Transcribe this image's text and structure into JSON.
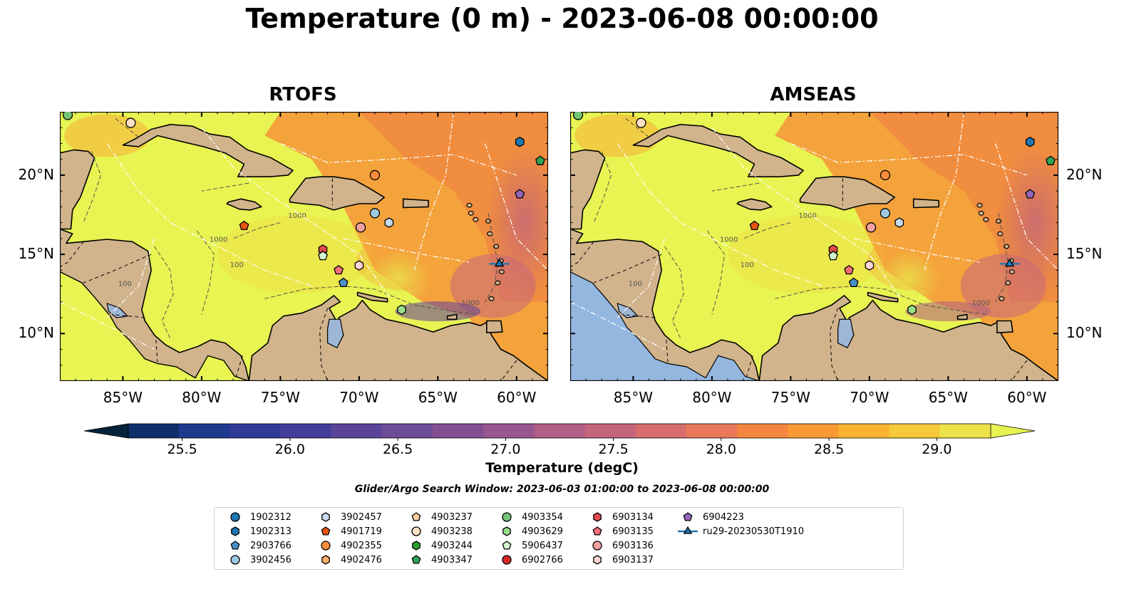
{
  "title": "Temperature (0 m) - 2023-06-08 00:00:00",
  "panels": [
    {
      "id": "rtofs",
      "title": "RTOFS"
    },
    {
      "id": "amseas",
      "title": "AMSEAS"
    }
  ],
  "map_extent": {
    "lon": [
      -89,
      -58
    ],
    "lat": [
      7,
      24
    ]
  },
  "lon_ticks": [
    "85°W",
    "80°W",
    "75°W",
    "70°W",
    "65°W",
    "60°W"
  ],
  "lon_tick_values": [
    -85,
    -80,
    -75,
    -70,
    -65,
    -60
  ],
  "lat_ticks": [
    "20°N",
    "15°N",
    "10°N"
  ],
  "lat_tick_values": [
    20,
    15,
    10
  ],
  "contour_labels": [
    "1000",
    "100"
  ],
  "colorbar": {
    "label": "Temperature (degC)",
    "min": 25.25,
    "max": 29.25,
    "ticks": [
      "25.5",
      "26.0",
      "26.5",
      "27.0",
      "27.5",
      "28.0",
      "28.5",
      "29.0"
    ],
    "tick_values": [
      25.5,
      26.0,
      26.5,
      27.0,
      27.5,
      28.0,
      28.5,
      29.0
    ],
    "extend": "both",
    "colors": [
      "#03233a",
      "#0f2f6b",
      "#1e3a8e",
      "#2e3b96",
      "#443c9b",
      "#5a4499",
      "#6e4b96",
      "#834f93",
      "#9a568f",
      "#b05e86",
      "#c4657b",
      "#d76d6c",
      "#e9785a",
      "#f4873f",
      "#f99a35",
      "#fbb233",
      "#f5c93a",
      "#eee24a",
      "#e6f250"
    ]
  },
  "search_window": "Glider/Argo Search Window: 2023-06-03 01:00:00 to 2023-06-08 00:00:00",
  "colors": {
    "land": "#d1b48c",
    "lakes": "#9eb7d6",
    "pacific": "#94b7e0",
    "warm": "#f3a53c",
    "yellow": "#e8f452"
  },
  "legend": [
    {
      "label": "1902312",
      "marker": "circle",
      "color": "#1f77b4"
    },
    {
      "label": "1902313",
      "marker": "hexagon",
      "color": "#1f77b4"
    },
    {
      "label": "2903766",
      "marker": "pentagon",
      "color": "#4a90c8"
    },
    {
      "label": "3902456",
      "marker": "circle",
      "color": "#9ecae1"
    },
    {
      "label": "3902457",
      "marker": "hexagon",
      "color": "#c6dbef"
    },
    {
      "label": "4901719",
      "marker": "pentagon",
      "color": "#e6550d"
    },
    {
      "label": "4902355",
      "marker": "circle",
      "color": "#fd8d3c"
    },
    {
      "label": "4902476",
      "marker": "hexagon",
      "color": "#fdae6b"
    },
    {
      "label": "4903237",
      "marker": "pentagon",
      "color": "#fdd0a2"
    },
    {
      "label": "4903238",
      "marker": "circle",
      "color": "#fde0c5"
    },
    {
      "label": "4903244",
      "marker": "hexagon",
      "color": "#2ca02c"
    },
    {
      "label": "4903347",
      "marker": "pentagon",
      "color": "#31a354"
    },
    {
      "label": "4903354",
      "marker": "circle",
      "color": "#74c476"
    },
    {
      "label": "4903629",
      "marker": "hexagon",
      "color": "#98df8a"
    },
    {
      "label": "5906437",
      "marker": "pentagon",
      "color": "#d4f7cf"
    },
    {
      "label": "6902766",
      "marker": "circle",
      "color": "#d62728"
    },
    {
      "label": "6903134",
      "marker": "hexagon",
      "color": "#e34a4a"
    },
    {
      "label": "6903135",
      "marker": "pentagon",
      "color": "#f46d78"
    },
    {
      "label": "6903136",
      "marker": "circle",
      "color": "#f4a0a0"
    },
    {
      "label": "6903137",
      "marker": "hexagon",
      "color": "#fcd4d4"
    },
    {
      "label": "6904223",
      "marker": "pentagon",
      "color": "#9467bd"
    },
    {
      "label": "ru29-20230530T1910",
      "marker": "triangle-line",
      "color": "#1f77b4"
    }
  ],
  "platforms": [
    {
      "id": "4903354",
      "lon": -88.5,
      "lat": 23.8
    },
    {
      "id": "4903238",
      "lon": -84.5,
      "lat": 23.3
    },
    {
      "id": "1902313",
      "lon": -59.8,
      "lat": 22.1
    },
    {
      "id": "4903347",
      "lon": -58.5,
      "lat": 20.9
    },
    {
      "id": "4902355",
      "lon": -69.0,
      "lat": 20.0
    },
    {
      "id": "6904223",
      "lon": -59.8,
      "lat": 18.8
    },
    {
      "id": "3902456",
      "lon": -69.0,
      "lat": 17.6
    },
    {
      "id": "3902457",
      "lon": -68.1,
      "lat": 17.0
    },
    {
      "id": "4901719",
      "lon": -77.3,
      "lat": 16.8
    },
    {
      "id": "6903136",
      "lon": -69.9,
      "lat": 16.7
    },
    {
      "id": "6903134",
      "lon": -72.3,
      "lat": 15.3
    },
    {
      "id": "5906437",
      "lon": -72.3,
      "lat": 14.9
    },
    {
      "id": "6903137",
      "lon": -70.0,
      "lat": 14.3
    },
    {
      "id": "6903135",
      "lon": -71.3,
      "lat": 14.0
    },
    {
      "id": "2903766",
      "lon": -71.0,
      "lat": 13.2
    },
    {
      "id": "4903629",
      "lon": -67.3,
      "lat": 11.5
    },
    {
      "id": "ru29-20230530T1910",
      "lon": -61.1,
      "lat": 14.4
    }
  ]
}
